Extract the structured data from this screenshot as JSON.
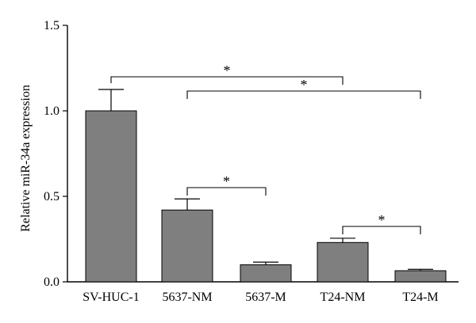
{
  "chart_data": {
    "type": "bar",
    "title": "",
    "xlabel": "",
    "ylabel": "Relative miR-34a expression",
    "categories": [
      "SV-HUC-1",
      "5637-NM",
      "5637-M",
      "T24-NM",
      "T24-M"
    ],
    "values": [
      1.0,
      0.42,
      0.1,
      0.23,
      0.065
    ],
    "errors": [
      0.125,
      0.065,
      0.015,
      0.025,
      0.008
    ],
    "ylim": [
      0,
      1.5
    ],
    "yticks": [
      "0.0",
      "0.5",
      "1.0",
      "1.5"
    ],
    "yticks_values": [
      0,
      0.5,
      1.0,
      1.5
    ],
    "grid": false,
    "bar_color": "#7f7f7f",
    "significance": [
      {
        "from": 0,
        "to": 3,
        "label": "*"
      },
      {
        "from": 1,
        "to": 4,
        "label": "*"
      },
      {
        "from": 1,
        "to": 2,
        "label": "*"
      },
      {
        "from": 3,
        "to": 4,
        "label": "*"
      }
    ]
  }
}
